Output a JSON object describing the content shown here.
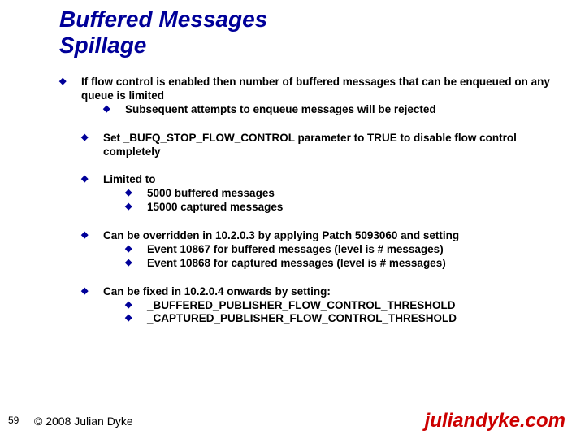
{
  "colors": {
    "title_color": "#000099",
    "bullet_color": "#000099",
    "text_color": "#000000",
    "url_color": "#cc0000",
    "background": "#ffffff"
  },
  "typography": {
    "title_fontsize": 28,
    "body_fontsize": 13.5,
    "page_fontsize": 12,
    "copyright_fontsize": 14,
    "url_fontsize": 24,
    "font_family": "Arial"
  },
  "title_line1": "Buffered Messages",
  "title_line2": "Spillage",
  "b1": "If flow control is enabled then number of buffered messages that can be enqueued on any queue is limited",
  "b1_1": "Subsequent attempts to enqueue messages will be rejected",
  "b2": "Set _BUFQ_STOP_FLOW_CONTROL parameter to TRUE to disable flow control completely",
  "b3": "Limited to",
  "b3_1": "5000 buffered messages",
  "b3_2": "15000 captured messages",
  "b4": "Can be overridden in 10.2.0.3 by applying Patch 5093060 and setting",
  "b4_1": "Event 10867 for buffered messages (level is # messages)",
  "b4_2": "Event 10868 for captured messages (level is # messages)",
  "b5": "Can be fixed in 10.2.0.4 onwards by setting:",
  "b5_1": "_BUFFERED_PUBLISHER_FLOW_CONTROL_THRESHOLD",
  "b5_2": "_CAPTURED_PUBLISHER_FLOW_CONTROL_THRESHOLD",
  "page_number": "59",
  "copyright": "© 2008 Julian Dyke",
  "url": "juliandyke.com"
}
